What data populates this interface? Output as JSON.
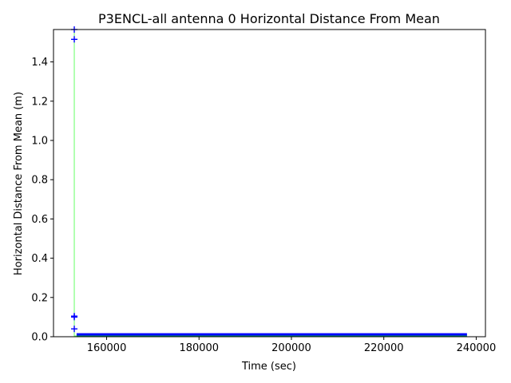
{
  "chart_data": {
    "type": "scatter",
    "title": "P3ENCL-all antenna 0 Horizontal Distance From Mean",
    "xlabel": "Time (sec)",
    "ylabel": "Horizontal Distance From Mean (m)",
    "xlim": [
      148500,
      242000
    ],
    "ylim": [
      0,
      1.565
    ],
    "xticks": [
      160000,
      180000,
      200000,
      220000,
      240000
    ],
    "xtick_labels": [
      "160000",
      "180000",
      "200000",
      "220000",
      "240000"
    ],
    "yticks": [
      0.0,
      0.2,
      0.4,
      0.6,
      0.8,
      1.0,
      1.2,
      1.4
    ],
    "ytick_labels": [
      "0.0",
      "0.2",
      "0.4",
      "0.6",
      "0.8",
      "1.0",
      "1.2",
      "1.4"
    ],
    "grid": false,
    "colors": {
      "points": "#0000ff",
      "line": "#00ff00",
      "axes": "#000000"
    },
    "series": [
      {
        "marker": "+",
        "color": "#0000ff",
        "x": [
          153000,
          153000,
          153000,
          153000,
          153000
        ],
        "y": [
          1.565,
          1.515,
          0.105,
          0.1,
          0.04
        ]
      },
      {
        "style": "band",
        "color": "#0000ff",
        "x_start": 153500,
        "x_end": 238000,
        "y_low": 0.002,
        "y_high": 0.018
      },
      {
        "style": "line",
        "color": "#00ff00",
        "x": [
          153000,
          153000,
          153000,
          238000
        ],
        "y": [
          1.565,
          0.105,
          0.004,
          0.004
        ]
      }
    ]
  }
}
